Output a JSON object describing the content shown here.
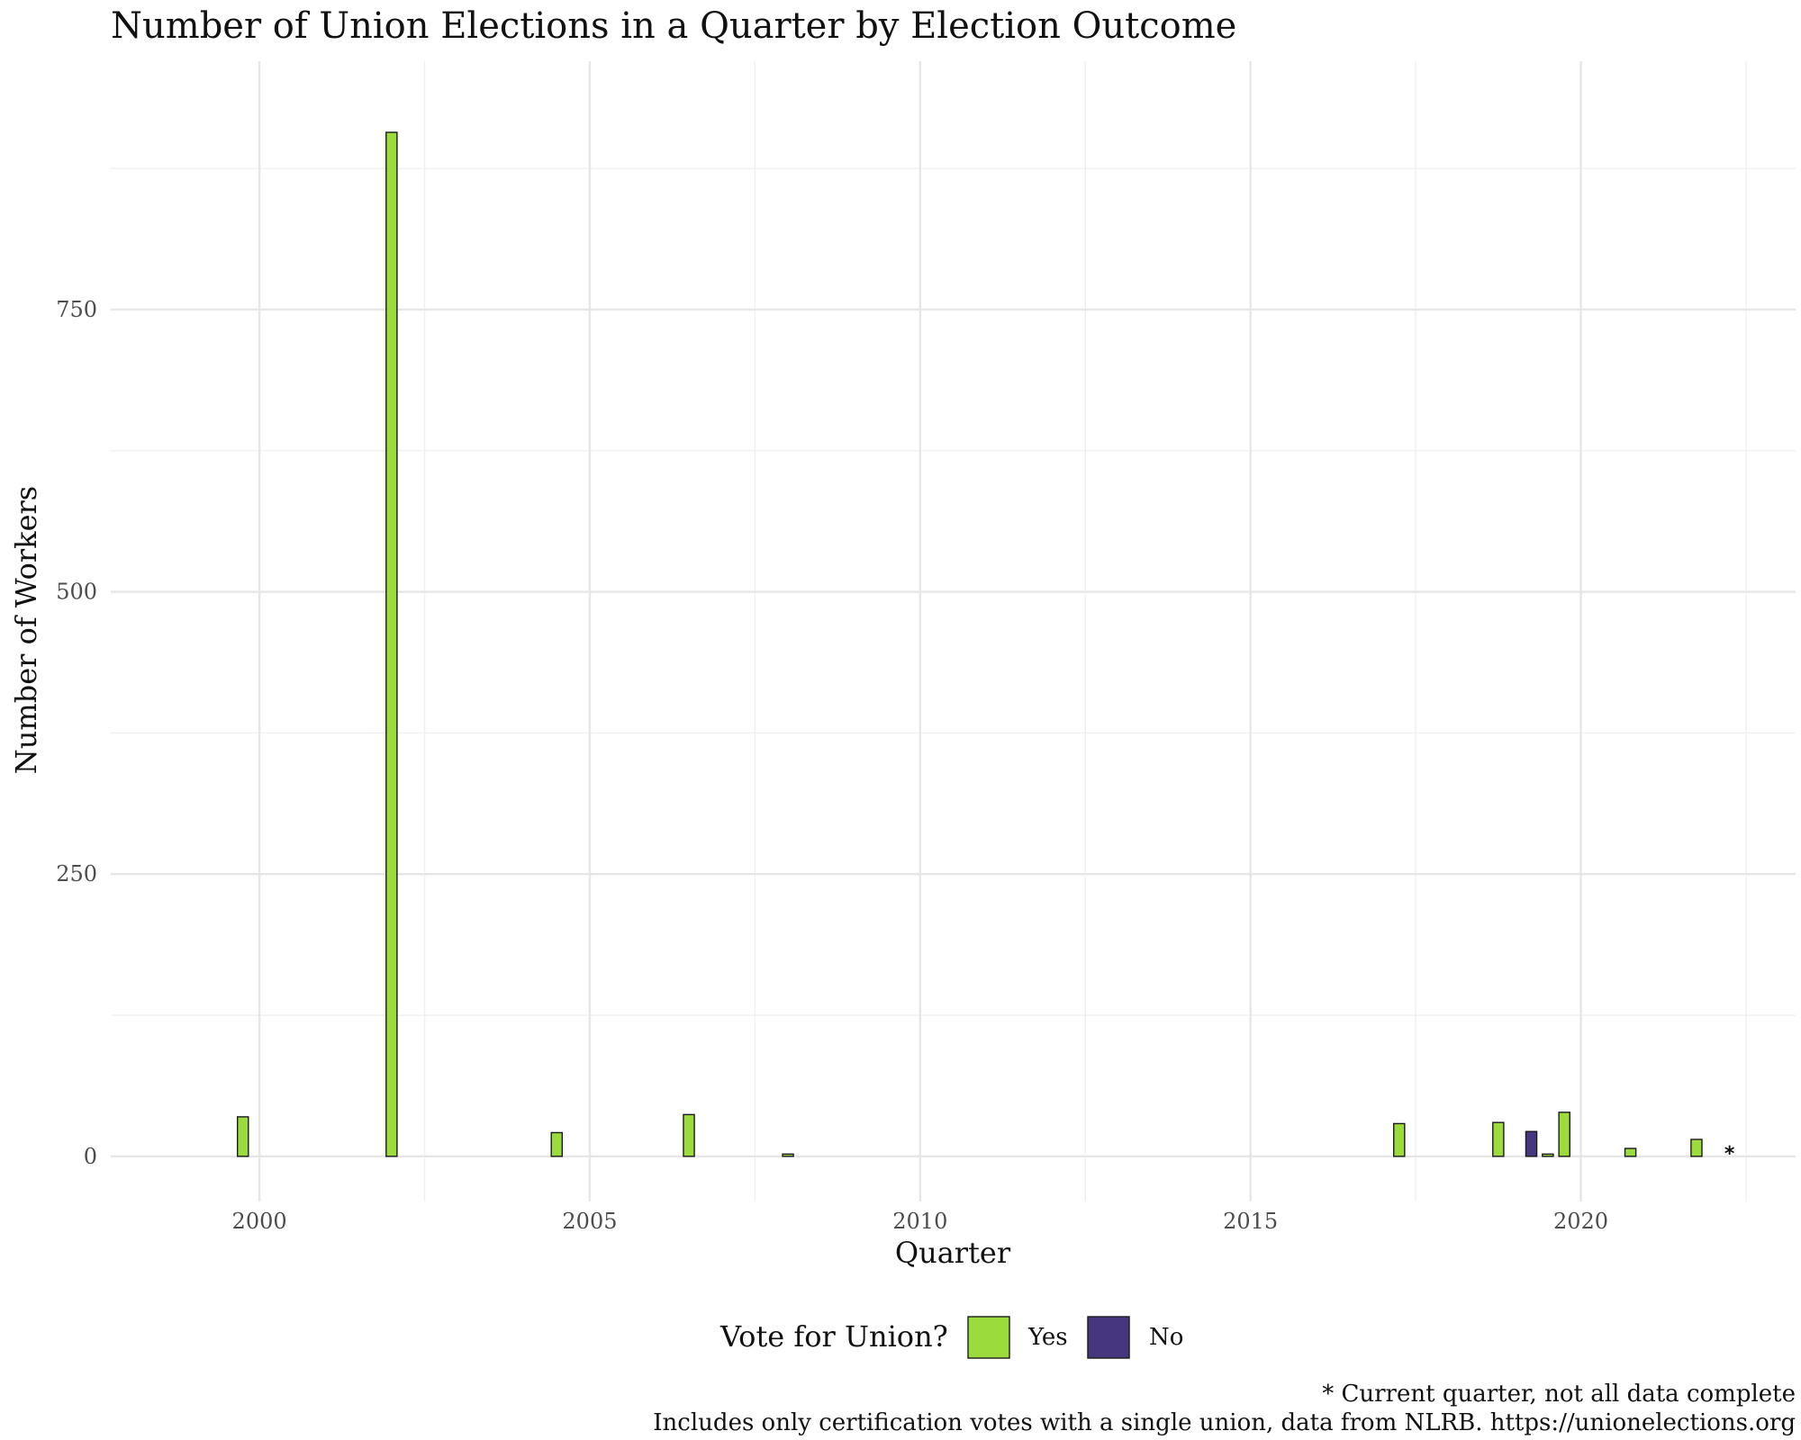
{
  "chart_data": {
    "type": "bar",
    "title": "Number of Union Elections in a Quarter by Election Outcome",
    "xlabel": "Quarter",
    "ylabel": "Number of Workers",
    "xlim": [
      1997.75,
      2023.25
    ],
    "ylim": [
      -40,
      970
    ],
    "x_ticks": [
      2000,
      2005,
      2010,
      2015,
      2020
    ],
    "y_ticks": [
      0,
      250,
      500,
      750
    ],
    "grid": true,
    "legend": {
      "title": "Vote for Union?",
      "position": "bottom",
      "entries": [
        {
          "label": "Yes",
          "color": "#9bdb3c"
        },
        {
          "label": "No",
          "color": "#45367f"
        }
      ]
    },
    "series": [
      {
        "name": "Yes",
        "color": "#9bdb3c",
        "points": [
          {
            "x": 1999.75,
            "y": 35
          },
          {
            "x": 2002.0,
            "y": 907
          },
          {
            "x": 2004.5,
            "y": 21
          },
          {
            "x": 2006.5,
            "y": 37
          },
          {
            "x": 2008.0,
            "y": 2
          },
          {
            "x": 2017.25,
            "y": 29
          },
          {
            "x": 2018.75,
            "y": 30
          },
          {
            "x": 2019.5,
            "y": 2
          },
          {
            "x": 2019.75,
            "y": 39
          },
          {
            "x": 2020.75,
            "y": 7
          },
          {
            "x": 2021.75,
            "y": 15
          }
        ]
      },
      {
        "name": "No",
        "color": "#45367f",
        "points": [
          {
            "x": 2019.25,
            "y": 22
          }
        ]
      }
    ],
    "annotations": [
      {
        "text": "*",
        "x": 2022.25
      }
    ],
    "caption": [
      "* Current quarter, not all data complete",
      "Includes only certification votes with a single union, data from NLRB. https://unionelections.org"
    ]
  }
}
